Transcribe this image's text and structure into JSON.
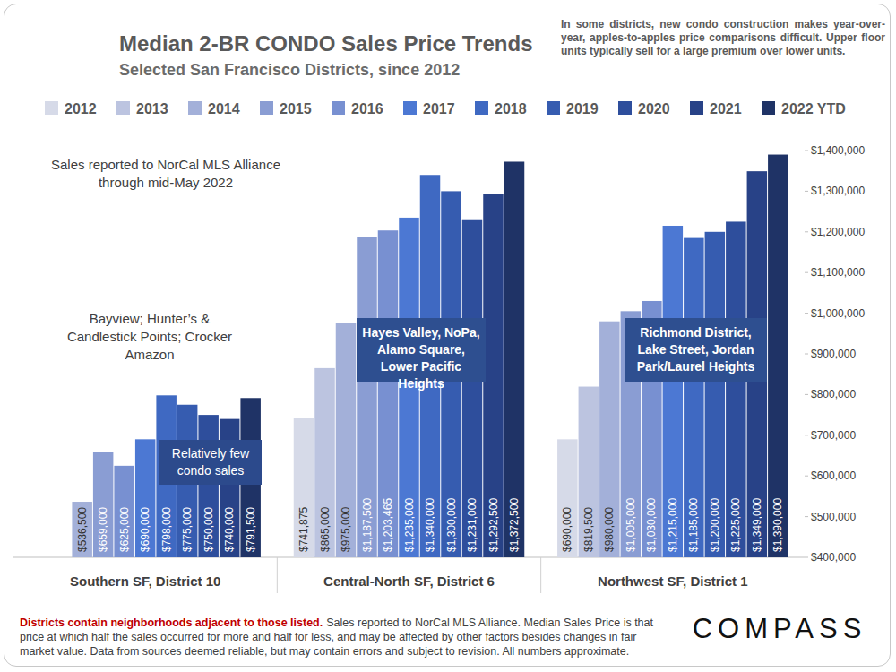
{
  "chart_data": {
    "type": "bar",
    "title": "Median 2-BR CONDO Sales Price Trends",
    "subtitle": "Selected San Francisco Districts, since 2012",
    "note": "In some districts, new condo construction makes year-over-year, apples-to-apples price comparisons difficult. Upper floor units typically sell for a large premium over lower units.",
    "categories": [
      "Southern SF, District 10",
      "Central-North SF, District 6",
      "Northwest SF, District 1"
    ],
    "series": [
      {
        "name": "2012",
        "color": "#d6dae8",
        "values": [
          null,
          741875,
          690000
        ],
        "value_labels": [
          null,
          "$741,875",
          "$690,000"
        ]
      },
      {
        "name": "2013",
        "color": "#bcc4e0",
        "values": [
          null,
          865000,
          819500
        ],
        "value_labels": [
          null,
          "$865,000",
          "$819,500"
        ]
      },
      {
        "name": "2014",
        "color": "#a3b0d9",
        "values": [
          536500,
          975000,
          980000
        ],
        "value_labels": [
          "$536,500",
          "$975,000",
          "$980,000"
        ]
      },
      {
        "name": "2015",
        "color": "#8a9dd3",
        "values": [
          659000,
          1187500,
          1005000
        ],
        "value_labels": [
          "$659,000",
          "$1,187,500",
          "$1,005,000"
        ]
      },
      {
        "name": "2016",
        "color": "#7890d1",
        "values": [
          625000,
          1203465,
          1030000
        ],
        "value_labels": [
          "$625,000",
          "$1,203,465",
          "$1,030,000"
        ]
      },
      {
        "name": "2017",
        "color": "#4c78d3",
        "values": [
          690000,
          1235000,
          1215000
        ],
        "value_labels": [
          "$690,000",
          "$1,235,000",
          "$1,215,000"
        ]
      },
      {
        "name": "2018",
        "color": "#3f69c2",
        "values": [
          798000,
          1340000,
          1185000
        ],
        "value_labels": [
          "$798,000",
          "$1,340,000",
          "$1,185,000"
        ]
      },
      {
        "name": "2019",
        "color": "#365cb0",
        "values": [
          775000,
          1300000,
          1200000
        ],
        "value_labels": [
          "$775,000",
          "$1,300,000",
          "$1,200,000"
        ]
      },
      {
        "name": "2020",
        "color": "#2e4e9c",
        "values": [
          750000,
          1231000,
          1225000
        ],
        "value_labels": [
          "$750,000",
          "$1,231,000",
          "$1,225,000"
        ]
      },
      {
        "name": "2021",
        "color": "#284287",
        "values": [
          740000,
          1292500,
          1349000
        ],
        "value_labels": [
          "$740,000",
          "$1,292,500",
          "$1,349,000"
        ]
      },
      {
        "name": "2022 YTD",
        "color": "#1f3366",
        "values": [
          791500,
          1372500,
          1390000
        ],
        "value_labels": [
          "$791,500",
          "$1,372,500",
          "$1,390,000"
        ]
      }
    ],
    "ylim": [
      400000,
      1400000
    ],
    "yticks": [
      {
        "value": 400000,
        "label": "$400,000"
      },
      {
        "value": 500000,
        "label": "$500,000"
      },
      {
        "value": 600000,
        "label": "$600,000"
      },
      {
        "value": 700000,
        "label": "$700,000"
      },
      {
        "value": 800000,
        "label": "$800,000"
      },
      {
        "value": 900000,
        "label": "$900,000"
      },
      {
        "value": 1000000,
        "label": "$1,000,000"
      },
      {
        "value": 1100000,
        "label": "$1,100,000"
      },
      {
        "value": 1200000,
        "label": "$1,200,000"
      },
      {
        "value": 1300000,
        "label": "$1,300,000"
      },
      {
        "value": 1400000,
        "label": "$1,400,000"
      }
    ],
    "grid": false,
    "legend": "top",
    "data_labels": true,
    "annotations": [
      "Sales reported to NorCal MLS Alliance through mid-May 2022",
      "Bayview; Hunter’s & Candlestick Points; Crocker Amazon",
      "Relatively few condo sales",
      "Hayes Valley, NoPa, Alamo Square, Lower Pacific Heights",
      "Richmond District, Lake Street, Jordan Park/Laurel Heights"
    ],
    "footnote": [
      "Districts contain neighborhoods adjacent to those listed.",
      "Sales reported to NorCal MLS Alliance. Median Sales Price is that price at which half the sales occurred for more and half for less, and may be affected by other factors besides changes in fair market value. Data from sources deemed reliable, but may contain errors and subject to revision. All numbers approximate."
    ],
    "logo": "COMPASS"
  }
}
